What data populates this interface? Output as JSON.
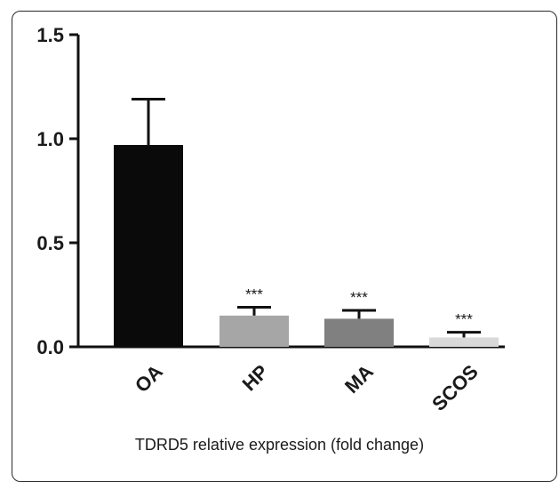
{
  "chart_data": {
    "type": "bar",
    "categories": [
      "OA",
      "HP",
      "MA",
      "SCOS"
    ],
    "values": [
      0.97,
      0.15,
      0.135,
      0.045
    ],
    "error_upper": [
      1.19,
      0.19,
      0.175,
      0.07
    ],
    "significance": [
      "",
      "***",
      "***",
      "***"
    ],
    "bar_colors": [
      "#0a0a0a",
      "#a6a6a6",
      "#808080",
      "#d9d9d9"
    ],
    "ylim": [
      0,
      1.5
    ],
    "yticks": [
      "0.0",
      "0.5",
      "1.0",
      "1.5"
    ],
    "title": "",
    "xlabel": "TDRD5 relative expression (fold change)",
    "ylabel": ""
  }
}
